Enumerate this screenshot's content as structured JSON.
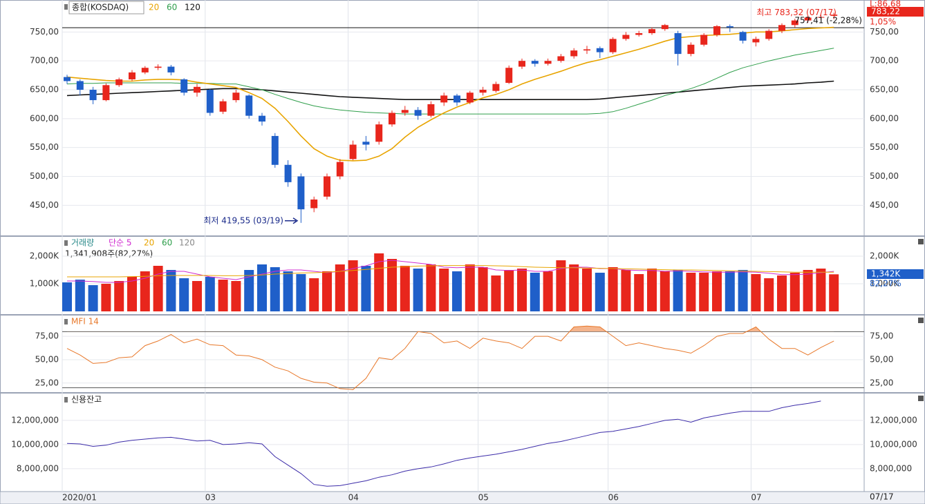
{
  "chart_data": [
    {
      "type": "candlestick",
      "title": "종합(KOSDAQ)",
      "categories": [
        "2020/01",
        null,
        null,
        null,
        null,
        null,
        null,
        null,
        null,
        null,
        null,
        "03",
        null,
        null,
        null,
        null,
        null,
        null,
        null,
        null,
        null,
        null,
        "04",
        null,
        null,
        null,
        null,
        null,
        null,
        null,
        null,
        null,
        "05",
        null,
        null,
        null,
        null,
        null,
        null,
        null,
        null,
        null,
        "06",
        null,
        null,
        null,
        null,
        null,
        null,
        null,
        null,
        null,
        null,
        "07",
        null,
        null,
        null,
        null,
        null,
        null
      ],
      "date_label": "07/17",
      "open": [
        672,
        665,
        650,
        632,
        658,
        668,
        680,
        688,
        690,
        668,
        645,
        650,
        612,
        632,
        640,
        605,
        570,
        520,
        500,
        445,
        465,
        500,
        530,
        560,
        560,
        590,
        610,
        615,
        605,
        628,
        640,
        628,
        645,
        648,
        662,
        690,
        700,
        695,
        700,
        708,
        718,
        722,
        715,
        738,
        745,
        748,
        755,
        748,
        712,
        728,
        745,
        760,
        750,
        732,
        738,
        752,
        762,
        770,
        775,
        778
      ],
      "high": [
        676,
        668,
        655,
        661,
        671,
        684,
        691,
        694,
        693,
        670,
        660,
        652,
        634,
        650,
        642,
        610,
        575,
        528,
        505,
        465,
        505,
        530,
        562,
        570,
        595,
        614,
        622,
        620,
        630,
        645,
        643,
        648,
        655,
        664,
        692,
        704,
        703,
        704,
        712,
        722,
        726,
        725,
        741,
        750,
        752,
        758,
        764,
        752,
        732,
        748,
        762,
        763,
        752,
        742,
        755,
        765,
        773,
        778,
        780,
        783.32
      ],
      "low": [
        660,
        640,
        625,
        630,
        655,
        665,
        677,
        684,
        675,
        640,
        638,
        605,
        608,
        628,
        600,
        588,
        515,
        482,
        419.55,
        438,
        460,
        495,
        528,
        545,
        555,
        586,
        605,
        598,
        602,
        622,
        622,
        625,
        640,
        645,
        660,
        686,
        690,
        692,
        697,
        704,
        712,
        705,
        712,
        735,
        742,
        745,
        752,
        692,
        708,
        725,
        742,
        750,
        730,
        725,
        735,
        748,
        758,
        766,
        771,
        772
      ],
      "close": [
        665,
        650,
        632,
        658,
        668,
        680,
        688,
        690,
        680,
        645,
        655,
        610,
        630,
        645,
        605,
        595,
        520,
        490,
        443,
        460,
        500,
        525,
        555,
        555,
        590,
        610,
        615,
        605,
        625,
        640,
        628,
        645,
        650,
        660,
        688,
        700,
        695,
        700,
        708,
        718,
        720,
        715,
        738,
        745,
        748,
        755,
        762,
        712,
        728,
        745,
        760,
        758,
        735,
        738,
        752,
        762,
        770,
        775,
        776,
        780
      ],
      "up_color": "#e8261c",
      "down_color": "#1f5fc9",
      "series": [
        {
          "name": "20",
          "color": "#e8a400",
          "values": [
            672,
            670,
            668,
            666,
            665,
            665,
            667,
            668,
            668,
            667,
            663,
            660,
            657,
            654,
            645,
            635,
            618,
            595,
            570,
            548,
            535,
            528,
            527,
            528,
            535,
            548,
            568,
            585,
            598,
            610,
            620,
            628,
            636,
            642,
            650,
            660,
            668,
            675,
            682,
            690,
            697,
            702,
            708,
            714,
            720,
            727,
            734,
            740,
            742,
            744,
            745,
            746,
            748,
            750,
            750,
            752,
            754,
            756,
            757,
            758
          ]
        },
        {
          "name": "60",
          "color": "#2e9e4a",
          "values": [
            660,
            661,
            661,
            662,
            662,
            662,
            662,
            662,
            662,
            661,
            661,
            661,
            660,
            660,
            655,
            650,
            642,
            635,
            628,
            622,
            618,
            615,
            613,
            611,
            610,
            609,
            608,
            608,
            608,
            608,
            608,
            608,
            608,
            608,
            608,
            608,
            608,
            608,
            608,
            608,
            608,
            609,
            612,
            618,
            625,
            632,
            640,
            646,
            652,
            660,
            670,
            680,
            688,
            694,
            700,
            705,
            710,
            714,
            718,
            722
          ]
        },
        {
          "name": "120",
          "color": "#111111",
          "values": [
            640,
            641,
            642,
            643,
            644,
            645,
            646,
            647,
            648,
            649,
            650,
            651,
            652,
            652,
            651,
            650,
            648,
            646,
            644,
            642,
            640,
            638,
            637,
            636,
            635,
            634,
            633,
            633,
            633,
            633,
            633,
            633,
            633,
            633,
            633,
            633,
            633,
            633,
            633,
            633,
            633,
            634,
            636,
            638,
            640,
            642,
            644,
            646,
            648,
            650,
            652,
            654,
            656,
            657,
            658,
            659,
            660,
            662,
            663,
            665
          ]
        }
      ],
      "price_line": 757.41,
      "annotations": [
        {
          "text": "최고 783,32 (07/17)",
          "value": 783.32,
          "color": "#e8261c"
        },
        {
          "text": "최저 419,55 (03/19)",
          "value": 419.55,
          "color": "#1a2a8a"
        },
        {
          "text": "757,41 (-2,28%)",
          "value": 757.41,
          "color": "#111111"
        }
      ],
      "right_labels": {
        "limit": "L:86,68",
        "last": "783,22",
        "change": "1,05%"
      },
      "ylim": [
        399,
        803
      ],
      "yticks": [
        {
          "value": 450,
          "label": "450,00"
        },
        {
          "value": 500,
          "label": "500,00"
        },
        {
          "value": 550,
          "label": "550,00"
        },
        {
          "value": 600,
          "label": "600,00"
        },
        {
          "value": 650,
          "label": "650,00"
        },
        {
          "value": 700,
          "label": "700,00"
        },
        {
          "value": 750,
          "label": "750,00"
        }
      ]
    },
    {
      "type": "bar",
      "title": "거래량",
      "subtitle": "1,341,908주(82,27%)",
      "values": [
        1050,
        1150,
        950,
        1000,
        1100,
        1250,
        1450,
        1650,
        1500,
        1200,
        1100,
        1250,
        1150,
        1100,
        1500,
        1700,
        1600,
        1450,
        1350,
        1200,
        1450,
        1700,
        1850,
        1650,
        2100,
        1900,
        1650,
        1550,
        1700,
        1550,
        1450,
        1700,
        1600,
        1300,
        1500,
        1550,
        1400,
        1450,
        1850,
        1700,
        1550,
        1400,
        1600,
        1500,
        1350,
        1550,
        1450,
        1500,
        1400,
        1400,
        1450,
        1450,
        1500,
        1350,
        1200,
        1300,
        1400,
        1500,
        1550,
        1342
      ],
      "series": [
        {
          "name": "단순 5",
          "color": "#d02bd0",
          "values": [
            1100,
            1100,
            1080,
            1050,
            1050,
            1100,
            1200,
            1350,
            1450,
            1450,
            1350,
            1250,
            1200,
            1150,
            1250,
            1350,
            1450,
            1500,
            1500,
            1450,
            1400,
            1450,
            1550,
            1650,
            1800,
            1850,
            1800,
            1750,
            1700,
            1600,
            1580,
            1600,
            1600,
            1500,
            1480,
            1500,
            1450,
            1450,
            1550,
            1600,
            1600,
            1550,
            1550,
            1500,
            1480,
            1480,
            1450,
            1470,
            1450,
            1430,
            1420,
            1420,
            1430,
            1420,
            1380,
            1330,
            1330,
            1350,
            1400,
            1450
          ]
        },
        {
          "name": "20",
          "color": "#e8a400",
          "values": [
            1250,
            1250,
            1250,
            1250,
            1250,
            1260,
            1270,
            1290,
            1300,
            1300,
            1300,
            1300,
            1290,
            1290,
            1300,
            1320,
            1350,
            1370,
            1390,
            1400,
            1420,
            1450,
            1480,
            1520,
            1560,
            1600,
            1620,
            1640,
            1650,
            1660,
            1660,
            1660,
            1660,
            1650,
            1640,
            1620,
            1600,
            1590,
            1580,
            1580,
            1570,
            1560,
            1550,
            1540,
            1530,
            1520,
            1510,
            1500,
            1500,
            1490,
            1480,
            1470,
            1460,
            1450,
            1440,
            1430,
            1420,
            1420,
            1420,
            1420
          ]
        }
      ],
      "legend_extra": [
        {
          "name": "60",
          "color": "#2e9e4a"
        },
        {
          "name": "120",
          "color": "#888888"
        }
      ],
      "right_labels": {
        "last": "1,342K",
        "ratio": "82,27%"
      },
      "ylim": [
        0,
        2675
      ],
      "yticks": [
        {
          "value": 1000,
          "label": "1,000K"
        },
        {
          "value": 2000,
          "label": "2,000K"
        }
      ]
    },
    {
      "type": "line",
      "title": "MFI 14",
      "color": "#e8782a",
      "values": [
        62,
        55,
        46,
        47,
        52,
        53,
        65,
        70,
        77,
        68,
        72,
        66,
        65,
        55,
        54,
        50,
        42,
        38,
        30,
        26,
        25,
        19,
        18,
        30,
        52,
        50,
        62,
        80,
        78,
        68,
        70,
        62,
        73,
        70,
        68,
        62,
        75,
        75,
        70,
        85,
        86,
        85,
        75,
        65,
        68,
        65,
        62,
        60,
        57,
        65,
        75,
        78,
        78,
        85,
        72,
        62,
        62,
        55,
        63,
        70
      ],
      "levels": [
        80,
        20
      ],
      "ylim": [
        16,
        95
      ],
      "yticks": [
        {
          "value": 25,
          "label": "25,00"
        },
        {
          "value": 50,
          "label": "50,00"
        },
        {
          "value": 75,
          "label": "75,00"
        }
      ]
    },
    {
      "type": "line",
      "title": "신용잔고",
      "color": "#3a2aa8",
      "values": [
        10100000,
        10050000,
        9850000,
        9950000,
        10200000,
        10350000,
        10450000,
        10550000,
        10600000,
        10450000,
        10300000,
        10350000,
        10000000,
        10050000,
        10150000,
        10050000,
        9000000,
        8300000,
        7600000,
        6700000,
        6550000,
        6600000,
        6800000,
        7000000,
        7300000,
        7500000,
        7800000,
        8000000,
        8150000,
        8400000,
        8700000,
        8900000,
        9050000,
        9200000,
        9400000,
        9600000,
        9850000,
        10100000,
        10250000,
        10500000,
        10750000,
        11000000,
        11100000,
        11300000,
        11500000,
        11750000,
        12000000,
        12100000,
        11850000,
        12200000,
        12400000,
        12600000,
        12750000,
        12750000,
        12750000,
        13050000,
        13250000,
        13400000,
        13600000,
        null
      ],
      "ylim": [
        6110000,
        14110000
      ],
      "yticks": [
        {
          "value": 8000000,
          "label": "8,000,000"
        },
        {
          "value": 10000000,
          "label": "10,000,000"
        },
        {
          "value": 12000000,
          "label": "12,000,000"
        }
      ]
    }
  ]
}
